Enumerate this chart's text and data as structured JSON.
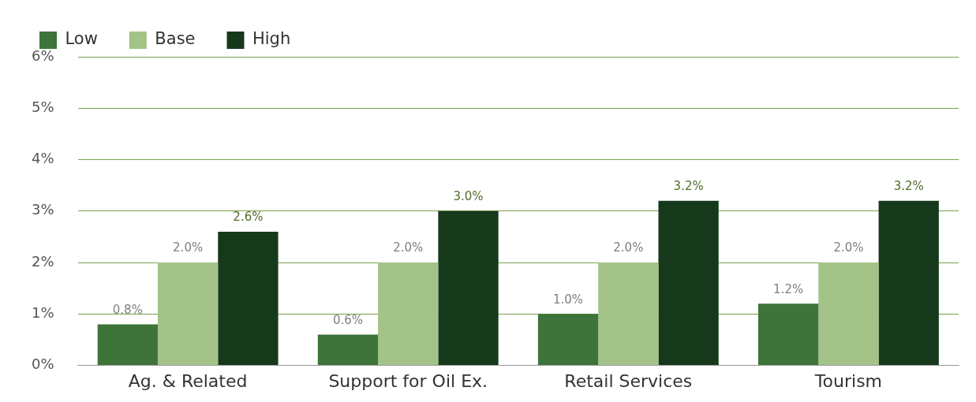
{
  "chart_data": {
    "type": "bar",
    "categories": [
      "Ag. & Related",
      "Support for Oil Ex.",
      "Retail Services",
      "Tourism"
    ],
    "series": [
      {
        "name": "Low",
        "color": "#3e7439",
        "values": [
          0.8,
          0.6,
          1.0,
          1.2
        ],
        "value_labels": [
          "0.8%",
          "0.6%",
          "1.0%",
          "1.2%"
        ]
      },
      {
        "name": "Base",
        "color": "#a3c388",
        "values": [
          2.0,
          2.0,
          2.0,
          2.0
        ],
        "value_labels": [
          "2.0%",
          "2.0%",
          "2.0%",
          "2.0%"
        ]
      },
      {
        "name": "High",
        "color": "#16391c",
        "values": [
          2.6,
          3.0,
          3.2,
          3.2
        ],
        "value_labels": [
          "2.6%",
          "3.0%",
          "3.2%",
          "3.2%"
        ]
      }
    ],
    "ylim": [
      0,
      6
    ],
    "yticks": [
      {
        "value": 0,
        "label": "0%"
      },
      {
        "value": 1,
        "label": "1%"
      },
      {
        "value": 2,
        "label": "2%"
      },
      {
        "value": 3,
        "label": "3%"
      },
      {
        "value": 4,
        "label": "4%"
      },
      {
        "value": 5,
        "label": "5%"
      },
      {
        "value": 6,
        "label": "6%"
      }
    ],
    "grid": "y",
    "legend": "top left"
  }
}
